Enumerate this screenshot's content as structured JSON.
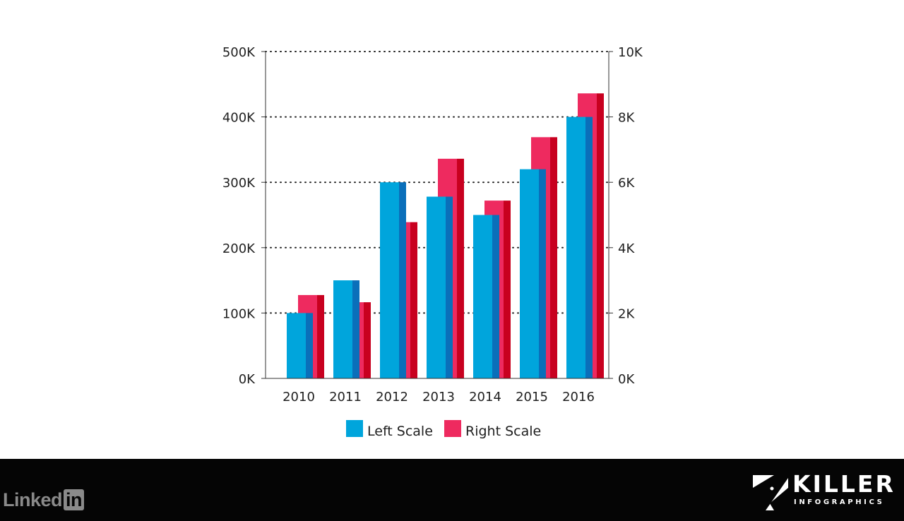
{
  "chart_data": {
    "type": "bar",
    "categories": [
      "2010",
      "2011",
      "2012",
      "2013",
      "2014",
      "2015",
      "2016"
    ],
    "series": [
      {
        "name": "Left Scale",
        "axis": "left",
        "color": "#00a5dc",
        "values": [
          100000,
          150000,
          300000,
          278000,
          250000,
          320000,
          400000
        ]
      },
      {
        "name": "Right Scale",
        "axis": "right",
        "color": "#ee2a5f",
        "values": [
          2550,
          2330,
          4780,
          6720,
          5440,
          7380,
          8720
        ]
      }
    ],
    "left_axis": {
      "ylim": [
        0,
        500000
      ],
      "ticks": [
        "0K",
        "100K",
        "200K",
        "300K",
        "400K",
        "500K"
      ]
    },
    "right_axis": {
      "ylim": [
        0,
        10000
      ],
      "ticks": [
        "0K",
        "2K",
        "4K",
        "6K",
        "8K",
        "10K"
      ]
    },
    "grid": "dotted horizontal",
    "legend_position": "bottom-center",
    "title": "",
    "xlabel": "",
    "ylabel": ""
  },
  "footer": {
    "linkedin_text": "Linked",
    "linkedin_box": "in",
    "brand_word": "KILLER",
    "brand_sub": "INFOGRAPHICS",
    "background": "#050505"
  }
}
